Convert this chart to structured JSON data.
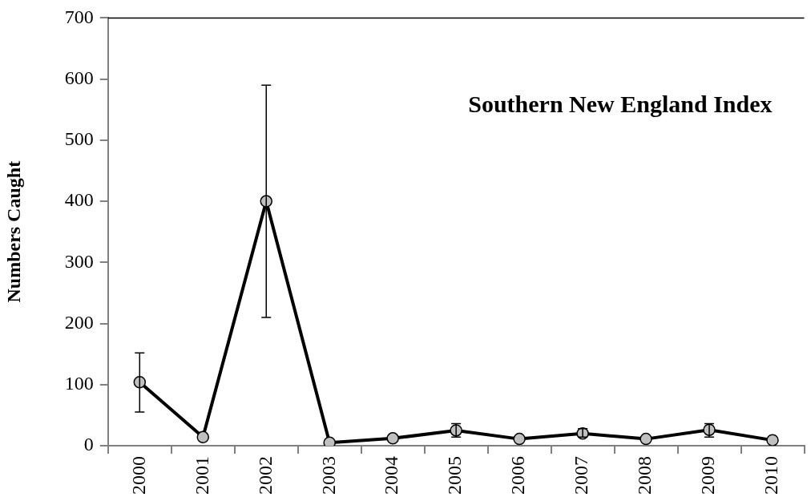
{
  "chart_data": {
    "type": "line",
    "title": "Southern New England Index",
    "ylabel": "Numbers Caught",
    "categories": [
      "2000",
      "2001",
      "2002",
      "2003",
      "2004",
      "2005",
      "2006",
      "2007",
      "2008",
      "2009",
      "2010"
    ],
    "series": [
      {
        "color": "#000000",
        "values": [
          104,
          14,
          400,
          5,
          12,
          25,
          11,
          20,
          11,
          26,
          9
        ],
        "errors": [
          [
            55,
            152
          ],
          null,
          [
            210,
            590
          ],
          null,
          null,
          [
            14,
            36
          ],
          null,
          [
            14,
            28
          ],
          null,
          [
            14,
            36
          ],
          null
        ]
      }
    ],
    "ylim": [
      0,
      700
    ],
    "yticks": [
      0,
      100,
      200,
      300,
      400,
      500,
      600,
      700
    ],
    "grid": false,
    "legend": false,
    "marker": "circle",
    "line_style": "solid"
  }
}
